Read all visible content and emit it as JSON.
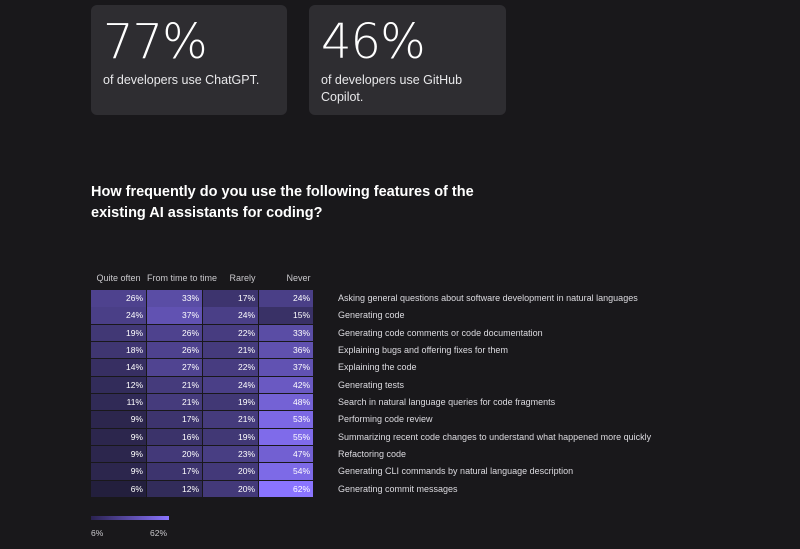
{
  "stats": [
    {
      "value": "77%",
      "desc": "of developers use ChatGPT."
    },
    {
      "value": "46%",
      "desc": "of developers use GitHub Copilot."
    }
  ],
  "question": "How frequently do you use the following features of the existing AI assistants for coding?",
  "columns": [
    "Quite often",
    "From time to time",
    "Rarely",
    "Never"
  ],
  "rows": [
    {
      "label": "Asking general questions about software development in natural languages",
      "values": [
        26,
        33,
        17,
        24
      ]
    },
    {
      "label": "Generating code",
      "values": [
        24,
        37,
        24,
        15
      ]
    },
    {
      "label": "Generating code comments or code documentation",
      "values": [
        19,
        26,
        22,
        33
      ]
    },
    {
      "label": "Explaining bugs and offering fixes for them",
      "values": [
        18,
        26,
        21,
        36
      ]
    },
    {
      "label": "Explaining the code",
      "values": [
        14,
        27,
        22,
        37
      ]
    },
    {
      "label": "Generating tests",
      "values": [
        12,
        21,
        24,
        42
      ]
    },
    {
      "label": "Search in natural language queries for code fragments",
      "values": [
        11,
        21,
        19,
        48
      ]
    },
    {
      "label": "Performing code review",
      "values": [
        9,
        17,
        21,
        53
      ]
    },
    {
      "label": "Summarizing recent code changes to understand what happened more quickly",
      "values": [
        9,
        16,
        19,
        55
      ]
    },
    {
      "label": "Refactoring code",
      "values": [
        9,
        20,
        23,
        47
      ]
    },
    {
      "label": "Generating CLI commands by natural language description",
      "values": [
        9,
        17,
        20,
        54
      ]
    },
    {
      "label": "Generating commit messages",
      "values": [
        6,
        12,
        20,
        62
      ]
    }
  ],
  "legend": {
    "min_label": "6%",
    "max_label": "62%",
    "min": 6,
    "max": 62
  },
  "colors": {
    "low": "#231f3d",
    "high": "#8a74ff",
    "background": "#19181b",
    "card": "#2e2d31"
  }
}
